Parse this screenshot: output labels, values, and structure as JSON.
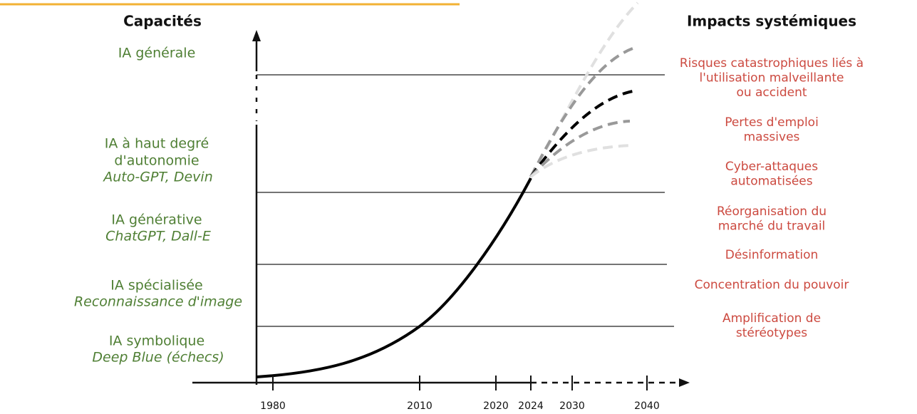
{
  "left_header": "Capacités",
  "capabilities": [
    {
      "lines": [
        "IA générale"
      ]
    },
    {
      "lines": [
        "IA à haut degré",
        "d'autonomie"
      ],
      "example": "Auto-GPT, Devin"
    },
    {
      "lines": [
        "IA générative"
      ],
      "example": "ChatGPT, Dall-E"
    },
    {
      "lines": [
        "IA spécialisée"
      ],
      "example": "Reconnaissance d'image"
    },
    {
      "lines": [
        "IA symbolique"
      ],
      "example": "Deep Blue (échecs)"
    }
  ],
  "right_header": "Impacts systémiques",
  "impacts": [
    {
      "lines": [
        "Risques catastrophiques liés à",
        "l'utilisation malveillante",
        "ou accident"
      ]
    },
    {
      "lines": [
        "Pertes d'emploi",
        "massives"
      ]
    },
    {
      "lines": [
        "Cyber-attaques",
        "automatisées"
      ]
    },
    {
      "lines": [
        "Réorganisation du",
        "marché du travail"
      ]
    },
    {
      "lines": [
        "Désinformation"
      ]
    },
    {
      "lines": [
        "Concentration du pouvoir"
      ]
    },
    {
      "lines": [
        "Amplification de",
        "stéréotypes"
      ]
    }
  ],
  "years": [
    "1980",
    "2010",
    "2020",
    "2024",
    "2030",
    "2040"
  ]
}
